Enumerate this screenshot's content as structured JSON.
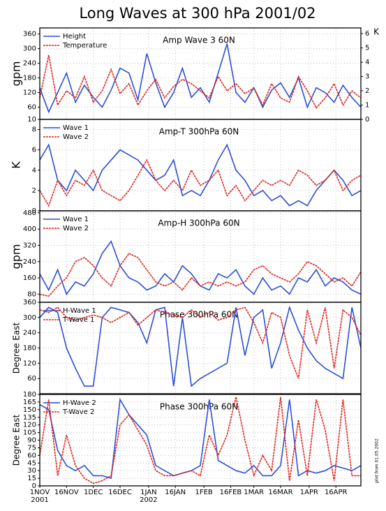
{
  "title": "Long Waves at 300 hPa 2001/02",
  "note": "plot from 01.05.2002",
  "chart_data": [
    {
      "type": "line",
      "title": "Amp Wave 3 60N",
      "ylabel": "gpm",
      "y2label": "K",
      "x": [
        0,
        5,
        10,
        15,
        20,
        25,
        30,
        35,
        40,
        45,
        50,
        55,
        60,
        65,
        70,
        75,
        80,
        85,
        90,
        95,
        100,
        105,
        110,
        115,
        120,
        125,
        130,
        135,
        140,
        145,
        150,
        155,
        160,
        165,
        170,
        175,
        180
      ],
      "xlim": [
        0,
        180
      ],
      "ylim": [
        10,
        385
      ],
      "yticks": [
        10,
        60,
        120,
        180,
        240,
        300,
        360
      ],
      "y2lim": [
        0,
        6.4
      ],
      "y2ticks": [
        0,
        1,
        2,
        3,
        4,
        5,
        6
      ],
      "grid": true,
      "series": [
        {
          "name": "Height",
          "color": "#2a4fd6",
          "values": [
            140,
            40,
            120,
            200,
            80,
            150,
            100,
            60,
            130,
            220,
            200,
            90,
            280,
            160,
            60,
            120,
            220,
            100,
            140,
            80,
            200,
            320,
            120,
            80,
            140,
            60,
            130,
            160,
            100,
            180,
            60,
            140,
            120,
            80,
            150,
            100,
            60
          ]
        },
        {
          "name": "Temperature",
          "color": "#e0231c",
          "dashed": true,
          "axis": "y2",
          "values": [
            1.5,
            4.5,
            1,
            2,
            1.5,
            3,
            1.2,
            2,
            3.5,
            1.8,
            2.5,
            1,
            2,
            2.8,
            1.5,
            2.3,
            2.8,
            2.5,
            2,
            1.5,
            3,
            2,
            2.5,
            1.8,
            2.2,
            1,
            2.5,
            1.5,
            1.2,
            3,
            2,
            0.8,
            1.5,
            2.5,
            1,
            2,
            1.5
          ]
        }
      ]
    },
    {
      "type": "line",
      "title": "Amp-T 300hPa 60N",
      "ylabel": "K",
      "x": [
        0,
        5,
        10,
        15,
        20,
        25,
        30,
        35,
        40,
        45,
        50,
        55,
        60,
        65,
        70,
        75,
        80,
        85,
        90,
        95,
        100,
        105,
        110,
        115,
        120,
        125,
        130,
        135,
        140,
        145,
        150,
        155,
        160,
        165,
        170,
        175,
        180
      ],
      "xlim": [
        0,
        180
      ],
      "ylim": [
        0,
        9
      ],
      "yticks": [
        0,
        2,
        4,
        6,
        8
      ],
      "grid": true,
      "series": [
        {
          "name": "Wave 1",
          "color": "#2a4fd6",
          "values": [
            5,
            6.5,
            3,
            2,
            4,
            3,
            2,
            4,
            5,
            6,
            5.5,
            5,
            4,
            3,
            3.5,
            5,
            1.5,
            2,
            1.5,
            3,
            5,
            6.5,
            4,
            3,
            1.5,
            2,
            1,
            1.5,
            0.5,
            1,
            0.5,
            2,
            3,
            4,
            3,
            1.5,
            2
          ]
        },
        {
          "name": "Wave 2",
          "color": "#e0231c",
          "dashed": true,
          "values": [
            2,
            0.5,
            3,
            1.5,
            3,
            2.5,
            4,
            2,
            1.5,
            1,
            2,
            3.5,
            5,
            3,
            2,
            3,
            2,
            4,
            2.5,
            3,
            4,
            1.5,
            2.5,
            1,
            2,
            3,
            2.5,
            3,
            2.5,
            4,
            3.5,
            2.5,
            3,
            4,
            2,
            3,
            3.5
          ]
        }
      ]
    },
    {
      "type": "line",
      "title": "Amp-H 300hPa 60N",
      "ylabel": "gpm",
      "x": [
        0,
        5,
        10,
        15,
        20,
        25,
        30,
        35,
        40,
        45,
        50,
        55,
        60,
        65,
        70,
        75,
        80,
        85,
        90,
        95,
        100,
        105,
        110,
        115,
        120,
        125,
        130,
        135,
        140,
        145,
        150,
        155,
        160,
        165,
        170,
        175,
        180
      ],
      "xlim": [
        0,
        180
      ],
      "ylim": [
        40,
        490
      ],
      "yticks": [
        80,
        160,
        240,
        320,
        400,
        480
      ],
      "grid": true,
      "series": [
        {
          "name": "Wave 1",
          "color": "#2a4fd6",
          "values": [
            180,
            100,
            200,
            80,
            140,
            120,
            180,
            280,
            340,
            220,
            160,
            140,
            100,
            120,
            180,
            140,
            220,
            180,
            120,
            100,
            180,
            160,
            200,
            120,
            80,
            160,
            100,
            120,
            80,
            160,
            140,
            200,
            120,
            160,
            140,
            100,
            80
          ]
        },
        {
          "name": "Wave 2",
          "color": "#e0231c",
          "dashed": true,
          "values": [
            80,
            70,
            120,
            160,
            240,
            260,
            220,
            160,
            120,
            220,
            280,
            260,
            200,
            140,
            120,
            140,
            100,
            160,
            120,
            140,
            120,
            140,
            120,
            140,
            200,
            220,
            180,
            160,
            140,
            180,
            240,
            220,
            180,
            140,
            160,
            120,
            190
          ]
        }
      ]
    },
    {
      "type": "line",
      "title": "Phase 300hPa 60N",
      "ylabel": "Degree East",
      "x": [
        0,
        5,
        10,
        15,
        20,
        25,
        30,
        35,
        40,
        45,
        50,
        55,
        60,
        65,
        70,
        75,
        80,
        85,
        90,
        95,
        100,
        105,
        110,
        115,
        120,
        125,
        130,
        135,
        140,
        145,
        150,
        155,
        160,
        165,
        170,
        175,
        180
      ],
      "xlim": [
        0,
        180
      ],
      "ylim": [
        0,
        360
      ],
      "yticks": [
        60,
        120,
        180,
        240,
        300,
        360
      ],
      "grid": true,
      "series": [
        {
          "name": "H-Wave 1",
          "color": "#2a4fd6",
          "values": [
            300,
            340,
            320,
            180,
            100,
            30,
            30,
            300,
            340,
            330,
            320,
            280,
            200,
            330,
            340,
            30,
            300,
            30,
            60,
            80,
            100,
            120,
            340,
            150,
            300,
            330,
            100,
            200,
            340,
            250,
            180,
            130,
            100,
            80,
            60,
            340,
            180
          ]
        },
        {
          "name": "T-Wave 1",
          "color": "#e0231c",
          "dashed": true,
          "values": [
            330,
            320,
            340,
            300,
            290,
            300,
            310,
            300,
            280,
            300,
            320,
            270,
            300,
            330,
            320,
            310,
            300,
            330,
            300,
            320,
            290,
            300,
            330,
            340,
            280,
            200,
            320,
            300,
            150,
            60,
            330,
            200,
            340,
            100,
            330,
            300,
            230
          ]
        }
      ]
    },
    {
      "type": "line",
      "title": "Phase 300hPa 60N",
      "ylabel": "Degree East",
      "x": [
        0,
        5,
        10,
        15,
        20,
        25,
        30,
        35,
        40,
        45,
        50,
        55,
        60,
        65,
        70,
        75,
        80,
        85,
        90,
        95,
        100,
        105,
        110,
        115,
        120,
        125,
        130,
        135,
        140,
        145,
        150,
        155,
        160,
        165,
        170,
        175,
        180
      ],
      "xlim": [
        0,
        180
      ],
      "ylim": [
        0,
        180
      ],
      "yticks": [
        0,
        15,
        30,
        45,
        60,
        75,
        90,
        105,
        120,
        135,
        150,
        165,
        180
      ],
      "grid": true,
      "xticks": [
        {
          "value": 0,
          "label": "1NOV"
        },
        {
          "value": 15,
          "label": "16NOV"
        },
        {
          "value": 30,
          "label": "1DEC"
        },
        {
          "value": 45,
          "label": "16DEC"
        },
        {
          "value": 61,
          "label": "1JAN"
        },
        {
          "value": 76,
          "label": "16JAN"
        },
        {
          "value": 92,
          "label": "1FEB"
        },
        {
          "value": 107,
          "label": "16FEB"
        },
        {
          "value": 120,
          "label": "1MAR"
        },
        {
          "value": 135,
          "label": "16MAR"
        },
        {
          "value": 151,
          "label": "1APR"
        },
        {
          "value": 166,
          "label": "16APR"
        }
      ],
      "x_years": [
        {
          "value": 0,
          "label": "2001"
        },
        {
          "value": 61,
          "label": "2002"
        }
      ],
      "series": [
        {
          "name": "H-Wave 2",
          "color": "#2a4fd6",
          "values": [
            160,
            150,
            70,
            40,
            30,
            40,
            20,
            20,
            15,
            170,
            140,
            120,
            100,
            40,
            30,
            20,
            25,
            30,
            40,
            170,
            50,
            40,
            30,
            25,
            40,
            20,
            20,
            40,
            170,
            20,
            30,
            25,
            30,
            40,
            35,
            30,
            40
          ]
        },
        {
          "name": "T-Wave 2",
          "color": "#e0231c",
          "dashed": true,
          "values": [
            60,
            170,
            20,
            100,
            40,
            15,
            5,
            10,
            20,
            120,
            140,
            110,
            80,
            30,
            20,
            20,
            25,
            30,
            20,
            100,
            60,
            100,
            175,
            90,
            20,
            60,
            30,
            175,
            10,
            130,
            20,
            170,
            110,
            10,
            170,
            20,
            20
          ]
        }
      ]
    }
  ]
}
